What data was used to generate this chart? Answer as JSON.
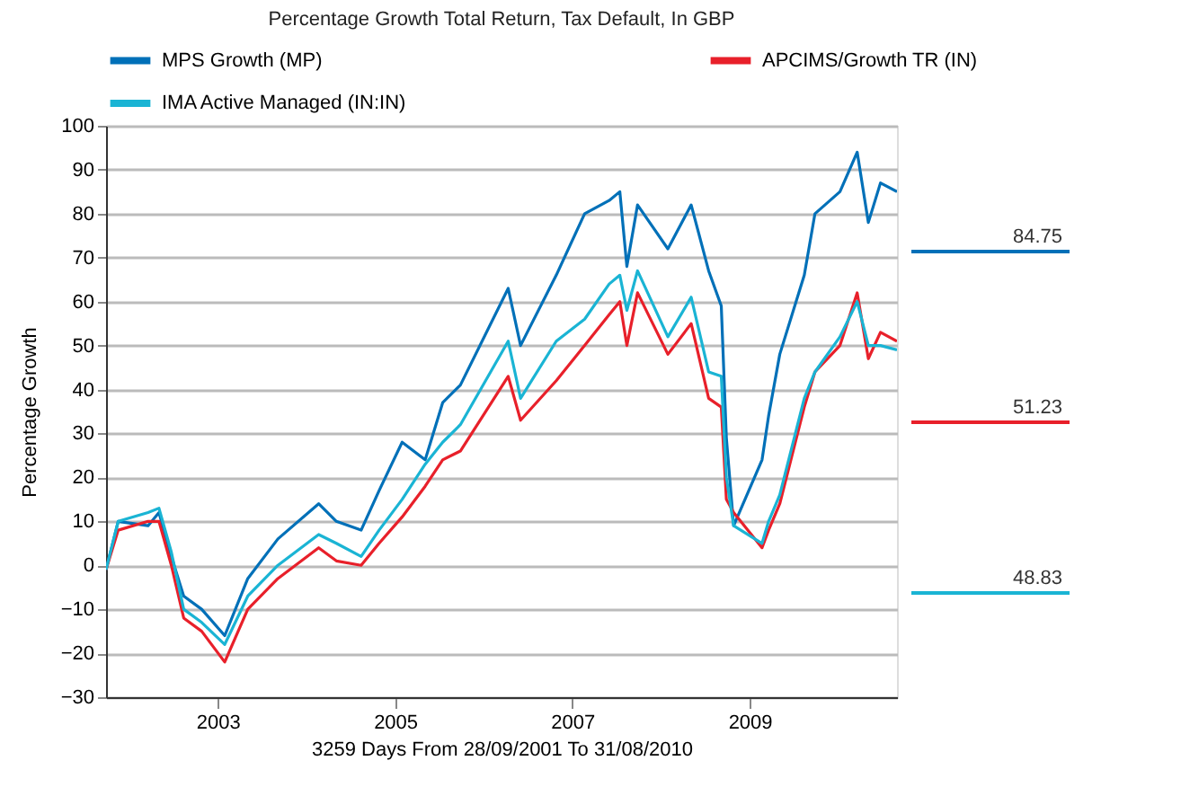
{
  "chart_data": {
    "type": "line",
    "title": "Percentage Growth Total Return, Tax Default, In GBP",
    "xlabel": "3259 Days From 28/09/2001 To 31/08/2010",
    "ylabel": "Percentage Growth",
    "x": [
      "2001-09-28",
      "2001-11-17",
      "2002-03-20",
      "2002-05-04",
      "2002-06-24",
      "2002-08-14",
      "2002-10-27",
      "2003-01-30",
      "2003-05-05",
      "2003-09-06",
      "2004-02-21",
      "2004-05-04",
      "2004-08-14",
      "2004-10-27",
      "2005-01-30",
      "2005-05-05",
      "2005-07-16",
      "2005-09-27",
      "2006-04-12",
      "2006-06-02",
      "2006-10-27",
      "2007-02-21",
      "2007-06-02",
      "2007-07-16",
      "2007-08-14",
      "2007-09-27",
      "2008-01-30",
      "2008-05-05",
      "2008-07-16",
      "2008-09-06",
      "2008-09-27",
      "2008-10-27",
      "2009-02-21",
      "2009-03-20",
      "2009-05-05",
      "2009-08-14",
      "2009-09-27",
      "2010-01-08",
      "2010-03-20",
      "2010-05-05",
      "2010-06-24",
      "2010-08-31"
    ],
    "series": [
      {
        "name": "MPS Growth (MP)",
        "color": "#0070b8",
        "values": [
          -1,
          10,
          9,
          12,
          2,
          -7,
          -10,
          -16,
          -3,
          6,
          14,
          10,
          8,
          17,
          28,
          24,
          37,
          41,
          63,
          50,
          66,
          80,
          83,
          85,
          68,
          82,
          72,
          82,
          67,
          59,
          29,
          9,
          24,
          34,
          48,
          66,
          80,
          85,
          94,
          78,
          87,
          85
        ]
      },
      {
        "name": "APCIMS/Growth TR (IN)",
        "color": "#e8202a",
        "values": [
          -1,
          8,
          10,
          10,
          0,
          -12,
          -15,
          -22,
          -10,
          -3,
          4,
          1,
          0,
          5,
          11,
          18,
          24,
          26,
          43,
          33,
          42,
          50,
          57,
          60,
          50,
          62,
          48,
          55,
          38,
          36,
          15,
          12,
          4,
          8,
          14,
          36,
          44,
          50,
          62,
          47,
          53,
          51
        ]
      },
      {
        "name": "IMA Active Managed (IN:IN)",
        "color": "#1ab4d4",
        "values": [
          -1,
          10,
          12,
          13,
          3,
          -10,
          -13,
          -18,
          -7,
          0,
          7,
          5,
          2,
          8,
          15,
          23,
          28,
          32,
          51,
          38,
          51,
          56,
          64,
          66,
          58,
          67,
          52,
          61,
          44,
          43,
          20,
          9,
          5,
          10,
          16,
          38,
          44,
          52,
          60,
          50,
          50,
          49
        ]
      }
    ],
    "annotations": [
      "84.75",
      "51.23",
      "48.83"
    ],
    "xlim": [
      "2001-09-28",
      "2010-08-31"
    ],
    "xticks": [
      "2003",
      "2005",
      "2007",
      "2009"
    ],
    "ylim": [
      -30,
      100
    ],
    "yticks": [
      -30,
      -20,
      -10,
      0,
      10,
      20,
      30,
      40,
      50,
      60,
      70,
      80,
      90,
      100
    ],
    "grid": "y",
    "legend": "top",
    "line_style": "solid",
    "marker": "none"
  }
}
